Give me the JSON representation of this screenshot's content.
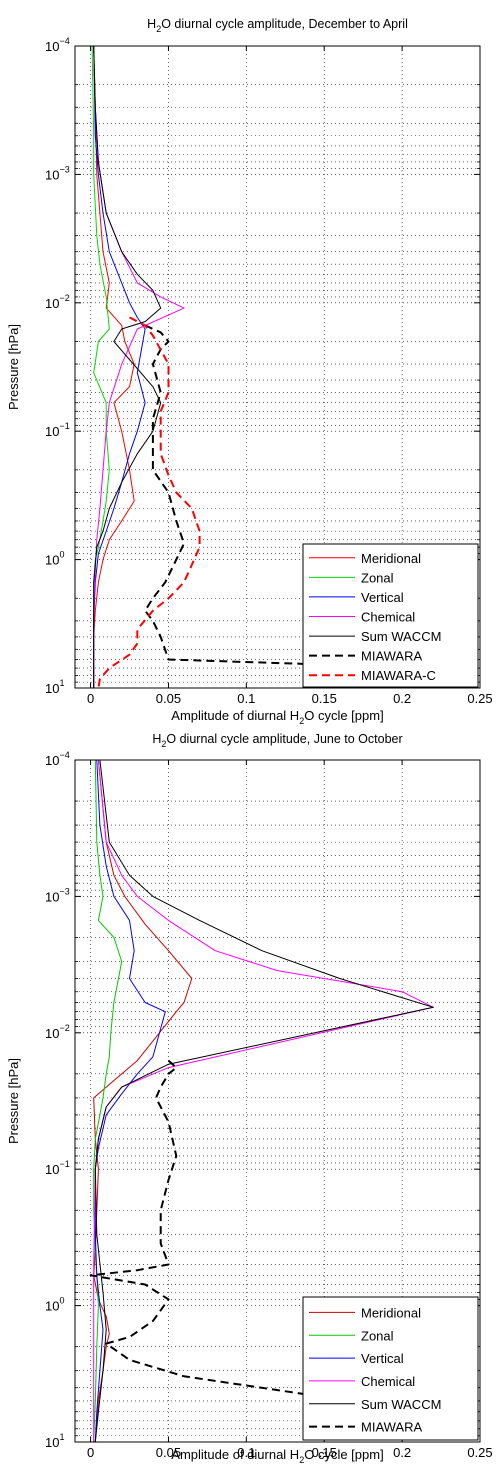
{
  "chart_data": [
    {
      "type": "line",
      "title": "H₂O diurnal cycle amplitude, December to April",
      "title_parts": [
        "H",
        "2",
        "O diurnal cycle amplitude, December to April"
      ],
      "xlabel": "Amplitude of diurnal H₂O cycle [ppm]",
      "xlabel_parts": [
        "Amplitude of diurnal H",
        "2",
        "O cycle [ppm]"
      ],
      "ylabel": "Pressure [hPa]",
      "xlim": [
        -0.01,
        0.25
      ],
      "ylim": [
        0.0001,
        10
      ],
      "y_scale": "log",
      "y_reversed": true,
      "xticks": [
        0,
        0.05,
        0.1,
        0.15,
        0.2,
        0.25
      ],
      "xtick_labels": [
        "0",
        "0.05",
        "0.1",
        "0.15",
        "0.2",
        "0.25"
      ],
      "yticks": [
        0.0001,
        0.001,
        0.01,
        0.1,
        1,
        10
      ],
      "ytick_labels": [
        {
          "base": "10",
          "exp": "−4"
        },
        {
          "base": "10",
          "exp": "−3"
        },
        {
          "base": "10",
          "exp": "−2"
        },
        {
          "base": "10",
          "exp": "−1"
        },
        {
          "base": "10",
          "exp": "0"
        },
        {
          "base": "10",
          "exp": "1"
        }
      ],
      "grid": true,
      "legend_position": "bottom-right",
      "series": [
        {
          "name": "Meridional",
          "color": "#ff0000",
          "style": "solid",
          "width": 1,
          "x": [
            0.002,
            0.003,
            0.004,
            0.006,
            0.008,
            0.012,
            0.01,
            0.02,
            0.022,
            0.028,
            0.025,
            0.015,
            0.02,
            0.025,
            0.028,
            0.02,
            0.012,
            0.008,
            0.005,
            0.003,
            0.002,
            0.002,
            0.002
          ],
          "y": [
            0.0001,
            0.0003,
            0.001,
            0.002,
            0.004,
            0.007,
            0.011,
            0.015,
            0.02,
            0.03,
            0.045,
            0.06,
            0.1,
            0.2,
            0.35,
            0.5,
            0.7,
            1.0,
            1.5,
            2.5,
            4,
            6,
            10
          ]
        },
        {
          "name": "Zonal",
          "color": "#00dd00",
          "style": "solid",
          "width": 1,
          "x": [
            0.001,
            0.002,
            0.002,
            0.004,
            0.006,
            0.01,
            0.012,
            0.005,
            0.002,
            0.01,
            0.01,
            0.012,
            0.01,
            0.008,
            0.005,
            0.003,
            0.002,
            0.002,
            0.002,
            0.002
          ],
          "y": [
            0.0001,
            0.0005,
            0.001,
            0.003,
            0.005,
            0.009,
            0.016,
            0.02,
            0.035,
            0.06,
            0.1,
            0.2,
            0.35,
            0.5,
            0.8,
            1.0,
            1.5,
            3,
            6,
            10
          ]
        },
        {
          "name": "Vertical",
          "color": "#0000ff",
          "style": "solid",
          "width": 1,
          "x": [
            0.002,
            0.003,
            0.005,
            0.008,
            0.012,
            0.02,
            0.025,
            0.03,
            0.035,
            0.03,
            0.035,
            0.03,
            0.025,
            0.02,
            0.015,
            0.01,
            0.005,
            0.003,
            0.002,
            0.002,
            0.002
          ],
          "y": [
            0.0001,
            0.0005,
            0.001,
            0.002,
            0.004,
            0.007,
            0.01,
            0.013,
            0.016,
            0.035,
            0.06,
            0.1,
            0.15,
            0.25,
            0.4,
            0.6,
            0.9,
            1.5,
            3,
            6,
            10
          ]
        },
        {
          "name": "Chemical",
          "color": "#ff00ff",
          "style": "solid",
          "width": 1,
          "x": [
            0.002,
            0.003,
            0.005,
            0.01,
            0.02,
            0.03,
            0.045,
            0.06,
            0.03,
            0.02,
            0.012,
            0.01,
            0.008,
            0.006,
            0.004,
            0.003,
            0.002,
            0.002,
            0.002
          ],
          "y": [
            0.0001,
            0.0003,
            0.0008,
            0.002,
            0.004,
            0.007,
            0.009,
            0.011,
            0.016,
            0.03,
            0.06,
            0.1,
            0.2,
            0.4,
            0.7,
            1.2,
            2.5,
            5,
            10
          ]
        },
        {
          "name": "Sum WACCM",
          "color": "#000000",
          "style": "solid",
          "width": 1,
          "x": [
            0.002,
            0.003,
            0.005,
            0.01,
            0.02,
            0.03,
            0.04,
            0.045,
            0.035,
            0.02,
            0.015,
            0.04,
            0.045,
            0.04,
            0.03,
            0.02,
            0.012,
            0.008,
            0.004,
            0.002,
            0.002,
            0.002
          ],
          "y": [
            0.0001,
            0.0003,
            0.0008,
            0.002,
            0.004,
            0.006,
            0.008,
            0.011,
            0.014,
            0.016,
            0.02,
            0.045,
            0.06,
            0.1,
            0.15,
            0.25,
            0.4,
            0.6,
            0.8,
            1.5,
            4,
            10
          ]
        },
        {
          "name": "MIAWARA",
          "color": "#000000",
          "style": "dashed",
          "width": 2,
          "x": [
            0.035,
            0.045,
            0.05,
            0.045,
            0.04,
            0.045,
            0.04,
            0.04,
            0.04,
            0.05,
            0.055,
            0.06,
            0.055,
            0.048,
            0.04,
            0.035,
            0.04,
            0.045,
            0.05,
            0.22
          ],
          "y": [
            0.015,
            0.017,
            0.02,
            0.023,
            0.03,
            0.05,
            0.08,
            0.12,
            0.2,
            0.3,
            0.5,
            0.75,
            1.0,
            1.5,
            2.0,
            2.5,
            3.0,
            4.0,
            6.0,
            7.0
          ]
        },
        {
          "name": "MIAWARA-C",
          "color": "#ff0000",
          "style": "dashed",
          "width": 2,
          "x": [
            0.025,
            0.035,
            0.04,
            0.05,
            0.05,
            0.045,
            0.045,
            0.045,
            0.05,
            0.055,
            0.065,
            0.07,
            0.07,
            0.065,
            0.06,
            0.05,
            0.04,
            0.03,
            0.03,
            0.025,
            0.012,
            0.006,
            0.005
          ],
          "y": [
            0.013,
            0.015,
            0.018,
            0.03,
            0.05,
            0.07,
            0.1,
            0.15,
            0.22,
            0.3,
            0.4,
            0.6,
            0.8,
            1.1,
            1.5,
            2.0,
            2.5,
            3.5,
            4.5,
            5.5,
            7.0,
            8.5,
            10
          ]
        }
      ]
    },
    {
      "type": "line",
      "title": "H₂O diurnal cycle amplitude, June to October",
      "title_parts": [
        "H",
        "2",
        "O diurnal cycle amplitude, June to October"
      ],
      "xlabel": "Amplitude of diurnal H₂O cycle [ppm]",
      "xlabel_parts": [
        "Amplitude of diurnal H",
        "2",
        "O cycle [ppm]"
      ],
      "ylabel": "Pressure [hPa]",
      "xlim": [
        -0.01,
        0.25
      ],
      "ylim": [
        0.0001,
        10
      ],
      "y_scale": "log",
      "y_reversed": true,
      "xticks": [
        0,
        0.05,
        0.1,
        0.15,
        0.2,
        0.25
      ],
      "xtick_labels": [
        "0",
        "0.05",
        "0.1",
        "0.15",
        "0.2",
        "0.25"
      ],
      "yticks": [
        0.0001,
        0.001,
        0.01,
        0.1,
        1,
        10
      ],
      "ytick_labels": [
        {
          "base": "10",
          "exp": "−4"
        },
        {
          "base": "10",
          "exp": "−3"
        },
        {
          "base": "10",
          "exp": "−2"
        },
        {
          "base": "10",
          "exp": "−1"
        },
        {
          "base": "10",
          "exp": "0"
        },
        {
          "base": "10",
          "exp": "1"
        }
      ],
      "grid": true,
      "legend_position": "bottom-right",
      "series": [
        {
          "name": "Meridional",
          "color": "#cc0000",
          "style": "solid",
          "width": 1,
          "x": [
            0.005,
            0.01,
            0.015,
            0.022,
            0.035,
            0.05,
            0.065,
            0.06,
            0.055,
            0.03,
            0.02,
            0.01,
            0.002,
            0.003,
            0.005,
            0.004,
            0.003,
            0.002,
            0.005,
            0.01,
            0.012,
            0.01,
            0.008,
            0.005,
            0.003
          ],
          "y": [
            0.0001,
            0.0004,
            0.0007,
            0.001,
            0.0016,
            0.0025,
            0.004,
            0.006,
            0.007,
            0.016,
            0.02,
            0.025,
            0.03,
            0.06,
            0.1,
            0.2,
            0.4,
            0.6,
            0.9,
            1.2,
            1.6,
            2.0,
            3.0,
            5.0,
            10
          ]
        },
        {
          "name": "Zonal",
          "color": "#00cc00",
          "style": "solid",
          "width": 1,
          "x": [
            0.003,
            0.004,
            0.006,
            0.008,
            0.005,
            0.015,
            0.02,
            0.015,
            0.013,
            0.012,
            0.01,
            0.008,
            0.006,
            0.003,
            0.002,
            0.002,
            0.003,
            0.004,
            0.005,
            0.004,
            0.003,
            0.002
          ],
          "y": [
            0.0001,
            0.0004,
            0.0007,
            0.001,
            0.0015,
            0.002,
            0.003,
            0.006,
            0.01,
            0.015,
            0.02,
            0.03,
            0.04,
            0.06,
            0.1,
            0.2,
            0.4,
            0.6,
            1.0,
            2.0,
            5.0,
            10
          ]
        },
        {
          "name": "Vertical",
          "color": "#0000ff",
          "style": "solid",
          "width": 1,
          "x": [
            0.004,
            0.006,
            0.01,
            0.015,
            0.025,
            0.028,
            0.025,
            0.035,
            0.048,
            0.04,
            0.03,
            0.02,
            0.01,
            0.005,
            0.003,
            0.003,
            0.004,
            0.006,
            0.008,
            0.006,
            0.004,
            0.003
          ],
          "y": [
            0.0001,
            0.0003,
            0.0006,
            0.001,
            0.0015,
            0.0025,
            0.004,
            0.006,
            0.007,
            0.015,
            0.02,
            0.028,
            0.04,
            0.07,
            0.1,
            0.3,
            0.6,
            1.0,
            1.5,
            3.0,
            6.0,
            10
          ]
        },
        {
          "name": "Chemical",
          "color": "#ff00ff",
          "style": "solid",
          "width": 1,
          "x": [
            0.005,
            0.01,
            0.02,
            0.03,
            0.05,
            0.08,
            0.12,
            0.2,
            0.22,
            0.05,
            0.02,
            0.01,
            0.005,
            0.003,
            0.002,
            0.002,
            0.002
          ],
          "y": [
            0.0001,
            0.0004,
            0.0007,
            0.001,
            0.0015,
            0.0025,
            0.0035,
            0.005,
            0.0065,
            0.018,
            0.025,
            0.035,
            0.06,
            0.1,
            0.5,
            2.0,
            10
          ]
        },
        {
          "name": "Sum WACCM",
          "color": "#000000",
          "style": "solid",
          "width": 1,
          "x": [
            0.006,
            0.012,
            0.025,
            0.04,
            0.07,
            0.11,
            0.16,
            0.22,
            0.05,
            0.02,
            0.01,
            0.005,
            0.003,
            0.004,
            0.008,
            0.01,
            0.008,
            0.005,
            0.003
          ],
          "y": [
            0.0001,
            0.0004,
            0.0007,
            0.001,
            0.0015,
            0.0025,
            0.004,
            0.0065,
            0.017,
            0.025,
            0.035,
            0.06,
            0.1,
            0.3,
            0.8,
            1.5,
            3.0,
            6.0,
            10
          ]
        },
        {
          "name": "MIAWARA",
          "color": "#000000",
          "style": "dashed",
          "width": 2,
          "x": [
            0.05,
            0.055,
            0.05,
            0.045,
            0.042,
            0.05,
            0.055,
            0.05,
            0.045,
            0.045,
            0.05,
            0.03,
            0.0,
            0.035,
            0.05,
            0.04,
            0.025,
            0.01,
            0.025,
            0.06,
            0.14,
            0.15
          ],
          "y": [
            0.016,
            0.018,
            0.02,
            0.025,
            0.03,
            0.045,
            0.08,
            0.12,
            0.2,
            0.35,
            0.5,
            0.55,
            0.6,
            0.7,
            0.9,
            1.3,
            1.7,
            1.9,
            2.5,
            3.3,
            4.5,
            5.2
          ]
        }
      ]
    }
  ]
}
